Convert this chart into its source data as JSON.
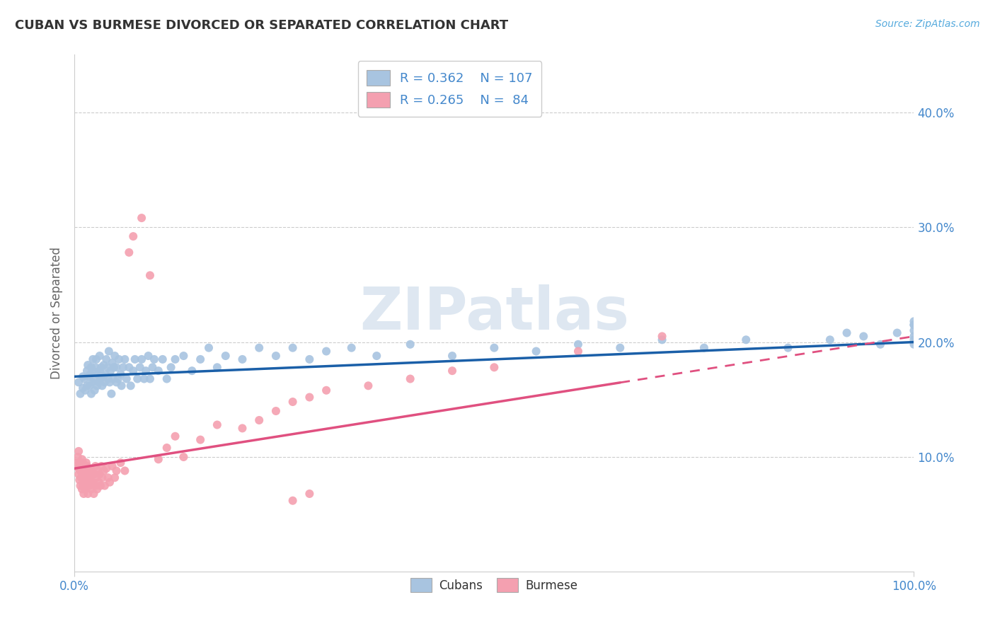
{
  "title": "CUBAN VS BURMESE DIVORCED OR SEPARATED CORRELATION CHART",
  "source_text": "Source: ZipAtlas.com",
  "ylabel": "Divorced or Separated",
  "xlim": [
    0.0,
    1.0
  ],
  "ylim": [
    0.0,
    0.45
  ],
  "ytick_positions": [
    0.1,
    0.2,
    0.3,
    0.4
  ],
  "ytick_labels": [
    "10.0%",
    "20.0%",
    "30.0%",
    "40.0%"
  ],
  "legend_cubans_label": "Cubans",
  "legend_burmese_label": "Burmese",
  "cuban_color": "#a8c4e0",
  "burmese_color": "#f4a0b0",
  "cuban_line_color": "#1a5fa8",
  "burmese_line_color": "#e05080",
  "watermark": "ZIPatlas",
  "watermark_color": "#c8d8e8",
  "background_color": "#ffffff",
  "grid_color": "#cccccc",
  "cubans_x": [
    0.005,
    0.007,
    0.01,
    0.01,
    0.012,
    0.013,
    0.015,
    0.015,
    0.016,
    0.017,
    0.018,
    0.019,
    0.02,
    0.02,
    0.021,
    0.022,
    0.022,
    0.023,
    0.024,
    0.025,
    0.026,
    0.027,
    0.028,
    0.029,
    0.03,
    0.03,
    0.031,
    0.032,
    0.033,
    0.034,
    0.035,
    0.036,
    0.037,
    0.038,
    0.04,
    0.04,
    0.041,
    0.042,
    0.043,
    0.044,
    0.045,
    0.046,
    0.047,
    0.048,
    0.05,
    0.05,
    0.052,
    0.053,
    0.055,
    0.056,
    0.058,
    0.06,
    0.062,
    0.065,
    0.067,
    0.07,
    0.072,
    0.075,
    0.078,
    0.08,
    0.083,
    0.085,
    0.088,
    0.09,
    0.093,
    0.095,
    0.1,
    0.105,
    0.11,
    0.115,
    0.12,
    0.13,
    0.14,
    0.15,
    0.16,
    0.17,
    0.18,
    0.2,
    0.22,
    0.24,
    0.26,
    0.28,
    0.3,
    0.33,
    0.36,
    0.4,
    0.45,
    0.5,
    0.55,
    0.6,
    0.65,
    0.7,
    0.75,
    0.8,
    0.85,
    0.9,
    0.92,
    0.94,
    0.96,
    0.98,
    1.0,
    1.0,
    1.0,
    1.0,
    1.0,
    1.0,
    1.0
  ],
  "cubans_y": [
    0.165,
    0.155,
    0.17,
    0.16,
    0.168,
    0.158,
    0.175,
    0.162,
    0.18,
    0.17,
    0.162,
    0.172,
    0.155,
    0.178,
    0.165,
    0.175,
    0.185,
    0.168,
    0.158,
    0.178,
    0.185,
    0.162,
    0.172,
    0.165,
    0.175,
    0.188,
    0.168,
    0.178,
    0.162,
    0.17,
    0.18,
    0.165,
    0.172,
    0.185,
    0.168,
    0.178,
    0.192,
    0.165,
    0.175,
    0.155,
    0.182,
    0.168,
    0.178,
    0.188,
    0.165,
    0.178,
    0.168,
    0.185,
    0.172,
    0.162,
    0.178,
    0.185,
    0.168,
    0.178,
    0.162,
    0.175,
    0.185,
    0.168,
    0.178,
    0.185,
    0.168,
    0.175,
    0.188,
    0.168,
    0.178,
    0.185,
    0.175,
    0.185,
    0.168,
    0.178,
    0.185,
    0.188,
    0.175,
    0.185,
    0.195,
    0.178,
    0.188,
    0.185,
    0.195,
    0.188,
    0.195,
    0.185,
    0.192,
    0.195,
    0.188,
    0.198,
    0.188,
    0.195,
    0.192,
    0.198,
    0.195,
    0.202,
    0.195,
    0.202,
    0.195,
    0.202,
    0.208,
    0.205,
    0.198,
    0.208,
    0.215,
    0.205,
    0.218,
    0.21,
    0.202,
    0.215,
    0.198
  ],
  "burmese_x": [
    0.003,
    0.004,
    0.005,
    0.005,
    0.005,
    0.006,
    0.006,
    0.007,
    0.007,
    0.008,
    0.008,
    0.009,
    0.009,
    0.01,
    0.01,
    0.01,
    0.011,
    0.011,
    0.012,
    0.012,
    0.013,
    0.013,
    0.014,
    0.014,
    0.015,
    0.015,
    0.016,
    0.016,
    0.017,
    0.017,
    0.018,
    0.018,
    0.019,
    0.019,
    0.02,
    0.02,
    0.021,
    0.022,
    0.023,
    0.024,
    0.025,
    0.025,
    0.026,
    0.027,
    0.028,
    0.029,
    0.03,
    0.031,
    0.032,
    0.033,
    0.035,
    0.036,
    0.038,
    0.04,
    0.042,
    0.045,
    0.048,
    0.05,
    0.055,
    0.06,
    0.065,
    0.07,
    0.08,
    0.09,
    0.1,
    0.11,
    0.12,
    0.13,
    0.15,
    0.17,
    0.2,
    0.22,
    0.24,
    0.26,
    0.28,
    0.26,
    0.28,
    0.3,
    0.35,
    0.4,
    0.45,
    0.5,
    0.6,
    0.7
  ],
  "burmese_y": [
    0.095,
    0.1,
    0.085,
    0.105,
    0.09,
    0.08,
    0.095,
    0.088,
    0.075,
    0.092,
    0.082,
    0.098,
    0.072,
    0.088,
    0.075,
    0.095,
    0.082,
    0.068,
    0.092,
    0.078,
    0.085,
    0.072,
    0.095,
    0.082,
    0.075,
    0.092,
    0.082,
    0.068,
    0.09,
    0.078,
    0.085,
    0.075,
    0.09,
    0.078,
    0.085,
    0.072,
    0.088,
    0.078,
    0.068,
    0.085,
    0.075,
    0.092,
    0.082,
    0.072,
    0.088,
    0.078,
    0.085,
    0.075,
    0.092,
    0.082,
    0.088,
    0.075,
    0.09,
    0.082,
    0.078,
    0.092,
    0.082,
    0.088,
    0.095,
    0.088,
    0.278,
    0.292,
    0.308,
    0.258,
    0.098,
    0.108,
    0.118,
    0.1,
    0.115,
    0.128,
    0.125,
    0.132,
    0.14,
    0.148,
    0.152,
    0.062,
    0.068,
    0.158,
    0.162,
    0.168,
    0.175,
    0.178,
    0.192,
    0.205
  ]
}
